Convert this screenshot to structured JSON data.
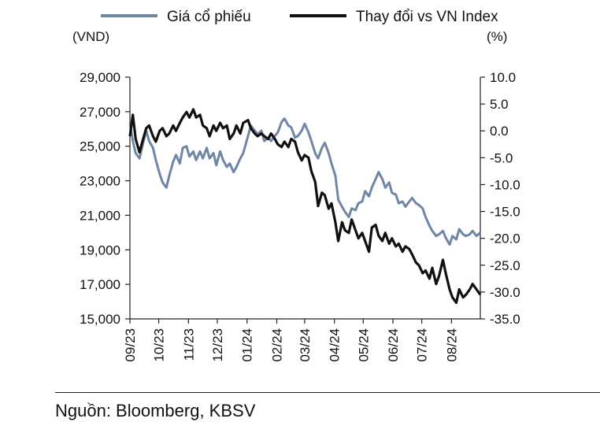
{
  "source": "Nguồn: Bloomberg, KBSV",
  "chart_data": {
    "type": "line",
    "left_axis_label": "(VND)",
    "right_axis_label": "(%)",
    "x_ticks": [
      "09/23",
      "10/23",
      "11/23",
      "12/23",
      "01/24",
      "02/24",
      "03/24",
      "04/24",
      "05/24",
      "06/24",
      "07/24",
      "08/24"
    ],
    "x_range": [
      "2023-09-01",
      "2024-08-31"
    ],
    "left_ylim": [
      15000,
      29000
    ],
    "left_ticks": [
      15000,
      17000,
      19000,
      21000,
      23000,
      25000,
      27000,
      29000
    ],
    "left_tick_labels": [
      "15,000",
      "17,000",
      "19,000",
      "21,000",
      "23,000",
      "25,000",
      "27,000",
      "29,000"
    ],
    "right_ylim": [
      -35,
      10
    ],
    "right_ticks": [
      10,
      5,
      0,
      -5,
      -10,
      -15,
      -20,
      -25,
      -30,
      -35
    ],
    "right_tick_labels": [
      "10.0",
      "5.0",
      "0.0",
      "-5.0",
      "-10.0",
      "-15.0",
      "-20.0",
      "-25.0",
      "-30.0",
      "-35.0"
    ],
    "grid": false,
    "legend_position": "top",
    "series": [
      {
        "name": "Giá cổ phiếu",
        "axis": "left",
        "color": "#6f86a6",
        "points": [
          [
            "2023-09-01",
            26300
          ],
          [
            "2023-09-04",
            25300
          ],
          [
            "2023-09-07",
            24600
          ],
          [
            "2023-09-11",
            24300
          ],
          [
            "2023-09-14",
            25000
          ],
          [
            "2023-09-18",
            25900
          ],
          [
            "2023-09-21",
            25300
          ],
          [
            "2023-09-25",
            24900
          ],
          [
            "2023-09-28",
            24200
          ],
          [
            "2023-10-02",
            23400
          ],
          [
            "2023-10-05",
            22900
          ],
          [
            "2023-10-09",
            22600
          ],
          [
            "2023-10-12",
            23300
          ],
          [
            "2023-10-16",
            24100
          ],
          [
            "2023-10-19",
            24500
          ],
          [
            "2023-10-23",
            24000
          ],
          [
            "2023-10-26",
            24900
          ],
          [
            "2023-10-30",
            25000
          ],
          [
            "2023-11-02",
            24400
          ],
          [
            "2023-11-06",
            24700
          ],
          [
            "2023-11-09",
            24200
          ],
          [
            "2023-11-13",
            24700
          ],
          [
            "2023-11-16",
            24300
          ],
          [
            "2023-11-20",
            24900
          ],
          [
            "2023-11-23",
            24300
          ],
          [
            "2023-11-27",
            24600
          ],
          [
            "2023-11-30",
            23900
          ],
          [
            "2023-12-04",
            24700
          ],
          [
            "2023-12-07",
            24200
          ],
          [
            "2023-12-11",
            23800
          ],
          [
            "2023-12-14",
            24000
          ],
          [
            "2023-12-18",
            23500
          ],
          [
            "2023-12-21",
            23800
          ],
          [
            "2023-12-25",
            24300
          ],
          [
            "2023-12-28",
            24600
          ],
          [
            "2024-01-02",
            25600
          ],
          [
            "2024-01-05",
            26200
          ],
          [
            "2024-01-09",
            25900
          ],
          [
            "2024-01-12",
            25700
          ],
          [
            "2024-01-16",
            25900
          ],
          [
            "2024-01-19",
            25300
          ],
          [
            "2024-01-23",
            25500
          ],
          [
            "2024-01-26",
            25300
          ],
          [
            "2024-01-30",
            25600
          ],
          [
            "2024-02-02",
            25800
          ],
          [
            "2024-02-06",
            26400
          ],
          [
            "2024-02-09",
            26600
          ],
          [
            "2024-02-13",
            26200
          ],
          [
            "2024-02-16",
            26100
          ],
          [
            "2024-02-20",
            25500
          ],
          [
            "2024-02-23",
            25600
          ],
          [
            "2024-02-27",
            25900
          ],
          [
            "2024-03-01",
            26300
          ],
          [
            "2024-03-05",
            25800
          ],
          [
            "2024-03-08",
            25300
          ],
          [
            "2024-03-12",
            24600
          ],
          [
            "2024-03-15",
            24300
          ],
          [
            "2024-03-19",
            24900
          ],
          [
            "2024-03-22",
            25200
          ],
          [
            "2024-03-26",
            24600
          ],
          [
            "2024-03-29",
            24000
          ],
          [
            "2024-04-02",
            23300
          ],
          [
            "2024-04-05",
            21900
          ],
          [
            "2024-04-09",
            21500
          ],
          [
            "2024-04-12",
            21200
          ],
          [
            "2024-04-16",
            20900
          ],
          [
            "2024-04-19",
            21400
          ],
          [
            "2024-04-23",
            21300
          ],
          [
            "2024-04-26",
            21700
          ],
          [
            "2024-04-30",
            21800
          ],
          [
            "2024-05-03",
            22400
          ],
          [
            "2024-05-07",
            22100
          ],
          [
            "2024-05-10",
            22600
          ],
          [
            "2024-05-14",
            23100
          ],
          [
            "2024-05-17",
            23500
          ],
          [
            "2024-05-21",
            23100
          ],
          [
            "2024-05-24",
            22600
          ],
          [
            "2024-05-28",
            22900
          ],
          [
            "2024-05-31",
            22300
          ],
          [
            "2024-06-04",
            22200
          ],
          [
            "2024-06-07",
            21700
          ],
          [
            "2024-06-11",
            21800
          ],
          [
            "2024-06-14",
            21500
          ],
          [
            "2024-06-18",
            21800
          ],
          [
            "2024-06-21",
            22000
          ],
          [
            "2024-06-25",
            21700
          ],
          [
            "2024-06-28",
            21600
          ],
          [
            "2024-07-02",
            21400
          ],
          [
            "2024-07-05",
            20900
          ],
          [
            "2024-07-09",
            20400
          ],
          [
            "2024-07-12",
            20100
          ],
          [
            "2024-07-16",
            19800
          ],
          [
            "2024-07-19",
            19900
          ],
          [
            "2024-07-23",
            20100
          ],
          [
            "2024-07-26",
            19700
          ],
          [
            "2024-07-30",
            19300
          ],
          [
            "2024-08-02",
            19800
          ],
          [
            "2024-08-06",
            19600
          ],
          [
            "2024-08-09",
            20200
          ],
          [
            "2024-08-13",
            19900
          ],
          [
            "2024-08-16",
            19800
          ],
          [
            "2024-08-20",
            19900
          ],
          [
            "2024-08-23",
            20100
          ],
          [
            "2024-08-27",
            19800
          ],
          [
            "2024-08-31",
            20000
          ]
        ]
      },
      {
        "name": "Thay đổi vs VN Index",
        "axis": "right",
        "color": "#111111",
        "points": [
          [
            "2023-09-01",
            -1.0
          ],
          [
            "2023-09-04",
            3.0
          ],
          [
            "2023-09-07",
            -1.5
          ],
          [
            "2023-09-11",
            -4.0
          ],
          [
            "2023-09-14",
            -2.0
          ],
          [
            "2023-09-18",
            0.5
          ],
          [
            "2023-09-21",
            1.0
          ],
          [
            "2023-09-25",
            -1.0
          ],
          [
            "2023-09-28",
            -2.0
          ],
          [
            "2023-10-02",
            0.0
          ],
          [
            "2023-10-05",
            0.5
          ],
          [
            "2023-10-09",
            -1.0
          ],
          [
            "2023-10-12",
            -0.5
          ],
          [
            "2023-10-16",
            1.0
          ],
          [
            "2023-10-19",
            0.0
          ],
          [
            "2023-10-23",
            1.5
          ],
          [
            "2023-10-26",
            2.5
          ],
          [
            "2023-10-30",
            3.5
          ],
          [
            "2023-11-02",
            2.5
          ],
          [
            "2023-11-06",
            4.0
          ],
          [
            "2023-11-09",
            2.5
          ],
          [
            "2023-11-13",
            3.0
          ],
          [
            "2023-11-16",
            1.0
          ],
          [
            "2023-11-20",
            0.5
          ],
          [
            "2023-11-23",
            -1.0
          ],
          [
            "2023-11-27",
            1.0
          ],
          [
            "2023-11-30",
            0.0
          ],
          [
            "2023-12-04",
            1.5
          ],
          [
            "2023-12-07",
            0.5
          ],
          [
            "2023-12-11",
            1.0
          ],
          [
            "2023-12-14",
            -1.5
          ],
          [
            "2023-12-18",
            -0.5
          ],
          [
            "2023-12-21",
            1.0
          ],
          [
            "2023-12-25",
            -0.5
          ],
          [
            "2023-12-28",
            1.5
          ],
          [
            "2024-01-02",
            2.0
          ],
          [
            "2024-01-05",
            0.5
          ],
          [
            "2024-01-09",
            -0.5
          ],
          [
            "2024-01-12",
            -1.0
          ],
          [
            "2024-01-16",
            -0.5
          ],
          [
            "2024-01-19",
            -1.0
          ],
          [
            "2024-01-23",
            -1.5
          ],
          [
            "2024-01-26",
            -0.5
          ],
          [
            "2024-01-30",
            -1.5
          ],
          [
            "2024-02-02",
            -2.5
          ],
          [
            "2024-02-06",
            -3.0
          ],
          [
            "2024-02-09",
            -2.0
          ],
          [
            "2024-02-13",
            -3.0
          ],
          [
            "2024-02-16",
            -1.5
          ],
          [
            "2024-02-20",
            -2.0
          ],
          [
            "2024-02-23",
            -4.0
          ],
          [
            "2024-02-27",
            -5.5
          ],
          [
            "2024-03-01",
            -4.5
          ],
          [
            "2024-03-05",
            -5.0
          ],
          [
            "2024-03-08",
            -7.5
          ],
          [
            "2024-03-12",
            -9.5
          ],
          [
            "2024-03-15",
            -14.0
          ],
          [
            "2024-03-19",
            -11.5
          ],
          [
            "2024-03-22",
            -12.0
          ],
          [
            "2024-03-26",
            -14.5
          ],
          [
            "2024-03-29",
            -13.5
          ],
          [
            "2024-04-02",
            -17.0
          ],
          [
            "2024-04-05",
            -20.5
          ],
          [
            "2024-04-09",
            -17.0
          ],
          [
            "2024-04-12",
            -18.5
          ],
          [
            "2024-04-16",
            -19.0
          ],
          [
            "2024-04-19",
            -16.5
          ],
          [
            "2024-04-23",
            -18.5
          ],
          [
            "2024-04-26",
            -20.0
          ],
          [
            "2024-04-30",
            -19.0
          ],
          [
            "2024-05-03",
            -20.5
          ],
          [
            "2024-05-07",
            -22.5
          ],
          [
            "2024-05-10",
            -18.0
          ],
          [
            "2024-05-14",
            -17.5
          ],
          [
            "2024-05-17",
            -19.5
          ],
          [
            "2024-05-21",
            -20.5
          ],
          [
            "2024-05-24",
            -19.0
          ],
          [
            "2024-05-28",
            -21.0
          ],
          [
            "2024-05-31",
            -20.0
          ],
          [
            "2024-06-04",
            -21.5
          ],
          [
            "2024-06-07",
            -21.0
          ],
          [
            "2024-06-11",
            -22.5
          ],
          [
            "2024-06-14",
            -21.5
          ],
          [
            "2024-06-18",
            -22.0
          ],
          [
            "2024-06-21",
            -23.0
          ],
          [
            "2024-06-25",
            -24.5
          ],
          [
            "2024-06-28",
            -25.0
          ],
          [
            "2024-07-02",
            -26.5
          ],
          [
            "2024-07-05",
            -26.0
          ],
          [
            "2024-07-09",
            -27.5
          ],
          [
            "2024-07-12",
            -25.5
          ],
          [
            "2024-07-16",
            -28.5
          ],
          [
            "2024-07-19",
            -27.0
          ],
          [
            "2024-07-23",
            -24.0
          ],
          [
            "2024-07-26",
            -26.5
          ],
          [
            "2024-07-30",
            -29.5
          ],
          [
            "2024-08-02",
            -31.0
          ],
          [
            "2024-08-06",
            -32.0
          ],
          [
            "2024-08-09",
            -29.5
          ],
          [
            "2024-08-13",
            -31.0
          ],
          [
            "2024-08-16",
            -30.5
          ],
          [
            "2024-08-20",
            -29.5
          ],
          [
            "2024-08-23",
            -28.5
          ],
          [
            "2024-08-27",
            -29.5
          ],
          [
            "2024-08-31",
            -30.5
          ]
        ]
      }
    ]
  }
}
